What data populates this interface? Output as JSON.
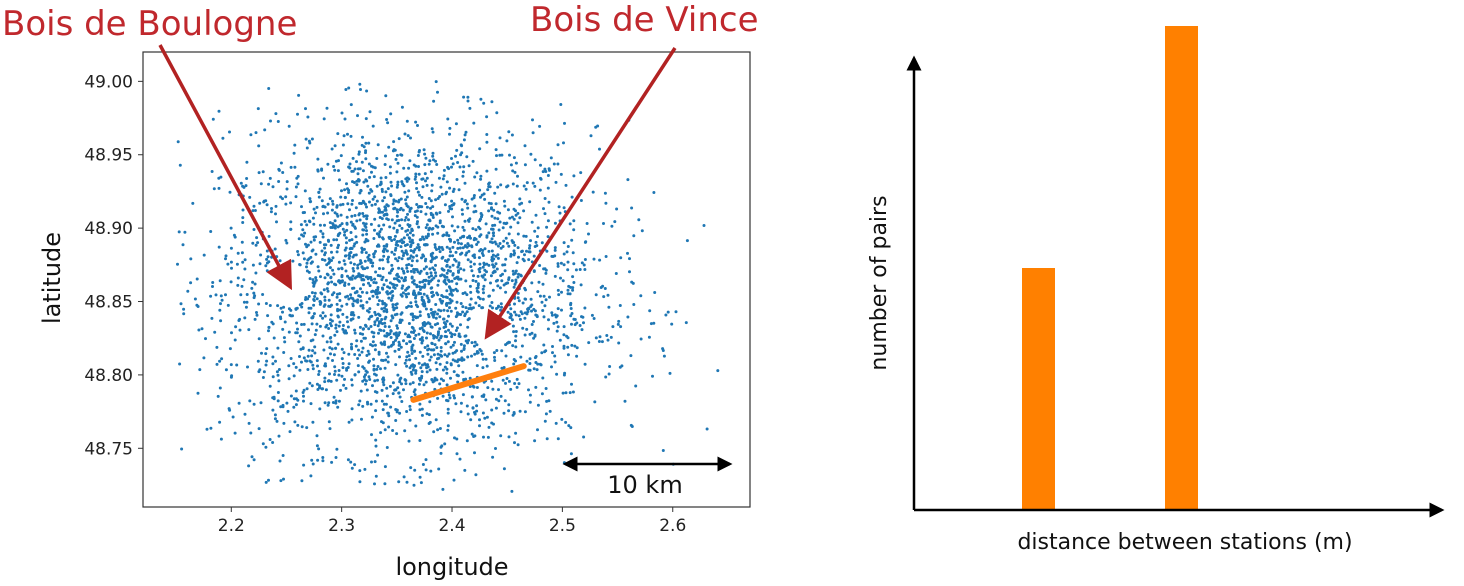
{
  "annotations": {
    "left": "Bois de Boulogne",
    "right": "Bois de Vincennes"
  },
  "scale_bar": {
    "label": "10 km"
  },
  "colors": {
    "points": "#1f77b4",
    "highlight": "#ff7f0e",
    "arrow": "#b22222",
    "bars": "#ff8000"
  },
  "chart_data": [
    {
      "type": "scatter",
      "title": "",
      "xlabel": "longitude",
      "ylabel": "latitude",
      "xlim": [
        2.12,
        2.67
      ],
      "ylim": [
        48.71,
        49.02
      ],
      "xticks": [
        "2.2",
        "2.3",
        "2.4",
        "2.5",
        "2.6"
      ],
      "yticks": [
        "48.75",
        "48.80",
        "48.85",
        "48.90",
        "48.95",
        "49.00"
      ],
      "highlight_segment": {
        "x": [
          2.365,
          2.465
        ],
        "y": [
          48.783,
          48.806
        ]
      },
      "annotation_targets": [
        {
          "label": "Bois de Boulogne",
          "x": 2.252,
          "y": 48.862
        },
        {
          "label": "Bois de Vincennes",
          "x": 2.433,
          "y": 48.828
        }
      ],
      "grid": false
    },
    {
      "type": "bar",
      "xlabel": "distance between stations (m)",
      "ylabel": "number of pairs",
      "categories": [
        "",
        ""
      ],
      "values": [
        0.5,
        1.0
      ],
      "grid": false
    }
  ]
}
